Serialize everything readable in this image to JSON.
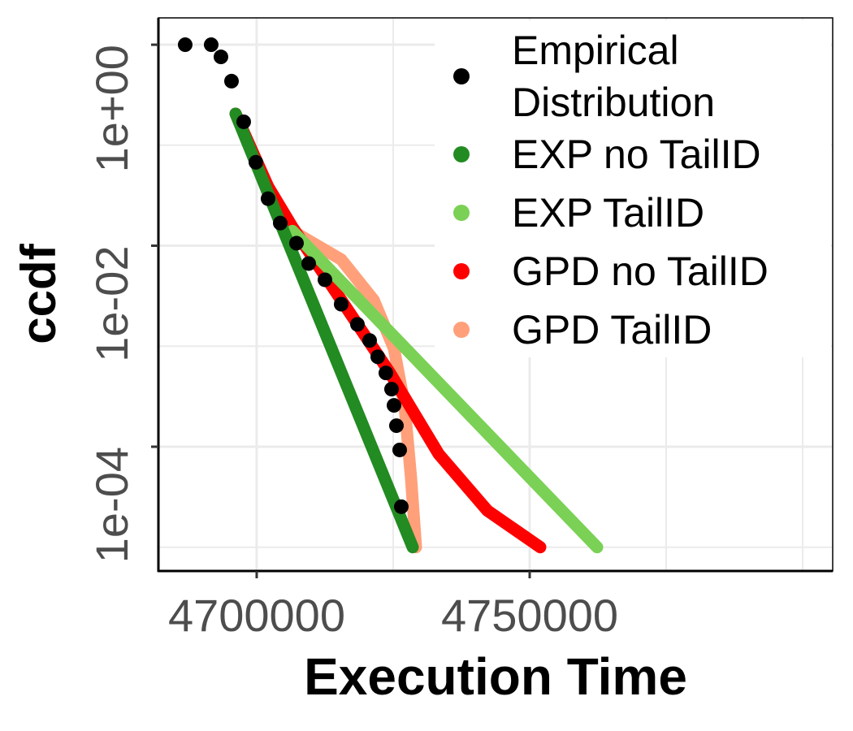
{
  "chart_data": {
    "type": "line",
    "x_label": "Execution Time",
    "y_label": "ccdf",
    "xlim": [
      4682000,
      4805500
    ],
    "ylim": [
      5.8e-06,
      1.85
    ],
    "ylog": true,
    "xticks": [
      4700000,
      4750000
    ],
    "xminorticks": [
      4725000,
      4775000,
      4800000
    ],
    "yticks": [
      {
        "value": 1,
        "label": "1e+00"
      },
      {
        "value": 0.01,
        "label": "1e-02"
      },
      {
        "value": 0.0001,
        "label": "1e-04"
      }
    ],
    "yminorticks": [
      0.1,
      0.001,
      1e-05
    ],
    "grid": true,
    "legend_position": "top-right",
    "series": [
      {
        "name": "Empirical Distribution",
        "color": "#000000",
        "style": "points",
        "x": [
          4686905,
          4691667,
          4693452,
          4695387,
          4697619,
          4699851,
          4702083,
          4704315,
          4707292,
          4709524,
          4712500,
          4715476,
          4718452,
          4720685,
          4722173,
          4723661,
          4724702,
          4725149,
          4725595,
          4726190,
          4726488
        ],
        "y": [
          1,
          1,
          0.757,
          0.434,
          0.171,
          0.0677,
          0.0294,
          0.0168,
          0.0106,
          0.00665,
          0.00458,
          0.00262,
          0.00165,
          0.00114,
          0.000785,
          0.000542,
          0.000374,
          0.000258,
          0.000162,
          9.29e-05,
          2.53e-05
        ]
      },
      {
        "name": "EXP no TailID",
        "color": "#228b22",
        "style": "line",
        "x": [
          4696131,
          4728571
        ],
        "y": [
          0.206,
          1e-05
        ]
      },
      {
        "name": "EXP TailID",
        "color": "#7ad155",
        "style": "line",
        "x": [
          4706548,
          4762351
        ],
        "y": [
          0.014,
          1e-05
        ]
      },
      {
        "name": "GPD no TailID",
        "color": "#ff0000",
        "style": "line",
        "x": [
          4696131,
          4702083,
          4706548,
          4715476,
          4724405,
          4733333,
          4742262,
          4751935
        ],
        "y": [
          0.206,
          0.0388,
          0.0153,
          0.00288,
          0.000542,
          8.46e-05,
          2.31e-05,
          1e-05
        ]
      },
      {
        "name": "GPD TailID",
        "color": "#ffa07a",
        "style": "line",
        "x": [
          4706548,
          4715476,
          4721429,
          4725149,
          4727083,
          4728274,
          4729167
        ],
        "y": [
          0.014,
          0.00729,
          0.00288,
          0.000946,
          0.000258,
          4.85e-05,
          1e-05
        ]
      }
    ]
  }
}
